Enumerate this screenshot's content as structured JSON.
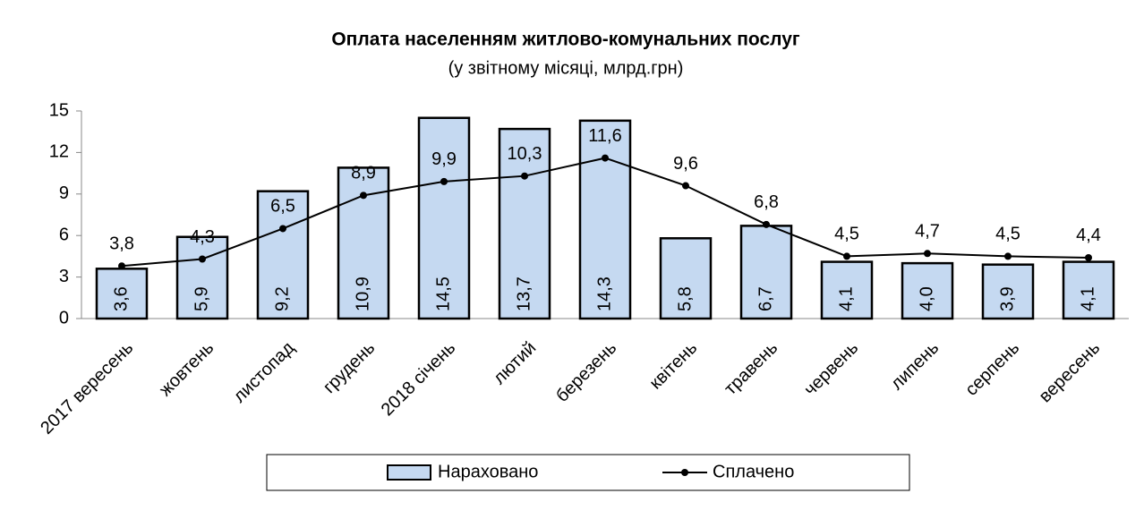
{
  "chart_data": {
    "type": "bar",
    "title": "Оплата населенням житлово-комунальних послуг",
    "subtitle": "(у звітному місяці, млрд.грн)",
    "categories": [
      "2017 вересень",
      "жовтень",
      "листопад",
      "грудень",
      "2018 січень",
      "лютий",
      "березень",
      "квітень",
      "травень",
      "червень",
      "липень",
      "серпень",
      "вересень"
    ],
    "series": [
      {
        "name": "Нараховано",
        "type": "bar",
        "color": "#c5d9f1",
        "values": [
          3.6,
          5.9,
          9.2,
          10.9,
          14.5,
          13.7,
          14.3,
          5.8,
          6.7,
          4.1,
          4.0,
          3.9,
          4.1
        ],
        "value_labels": [
          "3,6",
          "5,9",
          "9,2",
          "10,9",
          "14,5",
          "13,7",
          "14,3",
          "5,8",
          "6,7",
          "4,1",
          "4,0",
          "3,9",
          "4,1"
        ]
      },
      {
        "name": "Сплачено",
        "type": "line",
        "color": "#000000",
        "values": [
          3.8,
          4.3,
          6.5,
          8.9,
          9.9,
          10.3,
          11.6,
          9.6,
          6.8,
          4.5,
          4.7,
          4.5,
          4.4
        ],
        "value_labels": [
          "3,8",
          "4,3",
          "6,5",
          "8,9",
          "9,9",
          "10,3",
          "11,6",
          "9,6",
          "6,8",
          "4,5",
          "4,7",
          "4,5",
          "4,4"
        ]
      }
    ],
    "ylim": [
      0,
      15
    ],
    "yticks": [
      0,
      3,
      6,
      9,
      12,
      15
    ],
    "grid": false,
    "legend": "bottom"
  }
}
